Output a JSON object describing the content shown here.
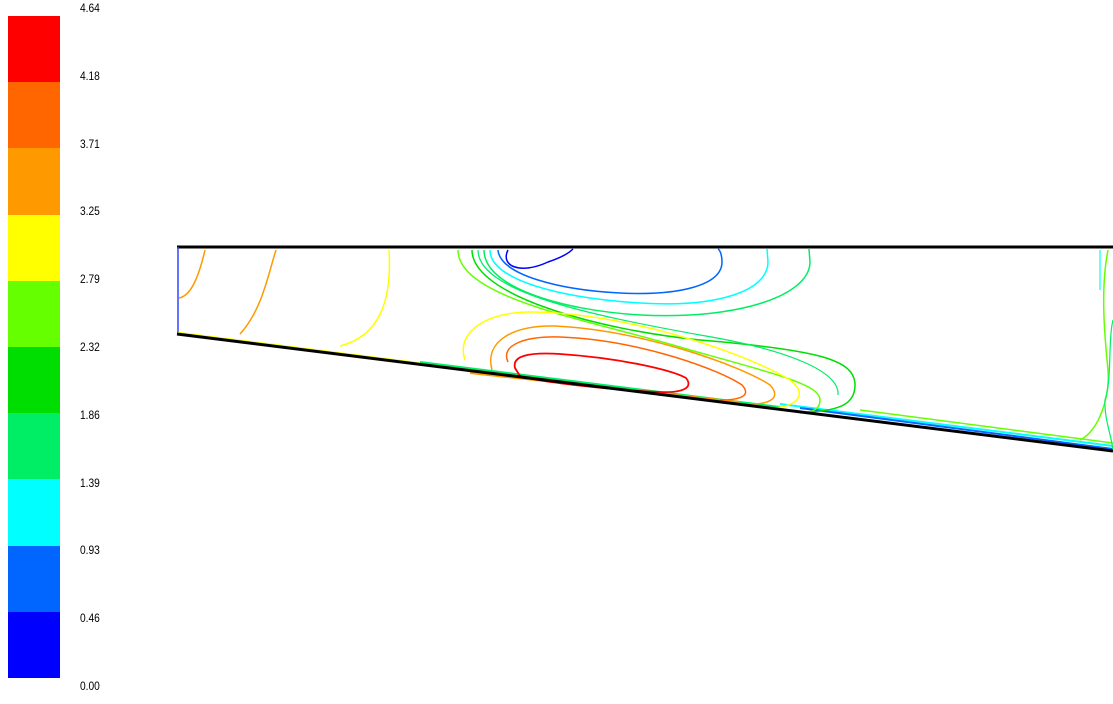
{
  "chart_data": {
    "type": "contour",
    "legend": {
      "placement": "left",
      "tick_labels": [
        "4.64",
        "4.18",
        "3.71",
        "3.25",
        "2.79",
        "2.32",
        "1.86",
        "1.39",
        "0.93",
        "0.46",
        "0.00"
      ],
      "colors": [
        "#ff0000",
        "#ff6600",
        "#ff9900",
        "#ffff00",
        "#66ff00",
        "#00dd00",
        "#00ee66",
        "#00ffff",
        "#0066ff",
        "#0000ff"
      ]
    },
    "levels": [
      0.46,
      0.93,
      1.39,
      1.86,
      2.32,
      2.79,
      3.25,
      3.71,
      4.18,
      4.64
    ],
    "range": [
      0.0,
      4.64
    ]
  }
}
